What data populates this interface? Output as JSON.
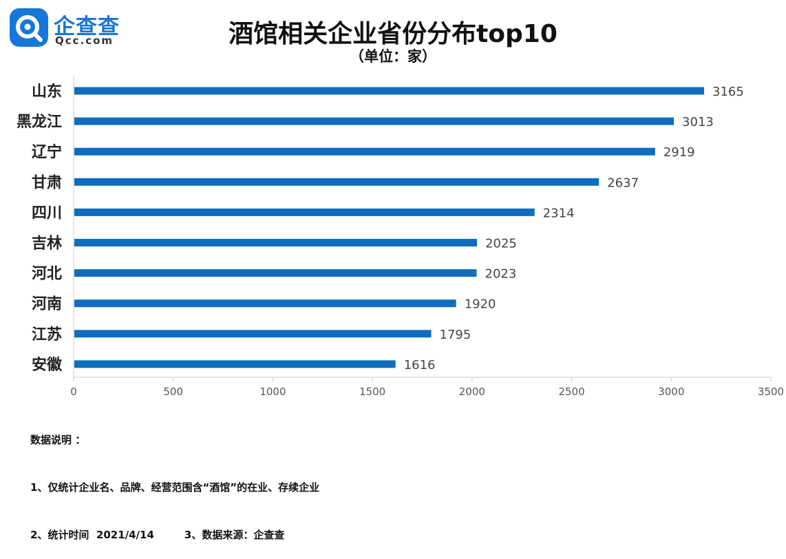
{
  "logo": {
    "name_cn": "企查查",
    "name_en": "Qcc.com",
    "icon": "qcc-logo-icon"
  },
  "chart_data": {
    "type": "bar",
    "orientation": "horizontal",
    "title": "酒馆相关企业省份分布top10",
    "subtitle": "（单位：家）",
    "categories": [
      "山东",
      "黑龙江",
      "辽宁",
      "甘肃",
      "四川",
      "吉林",
      "河北",
      "河南",
      "江苏",
      "安徽"
    ],
    "values": [
      3165,
      3013,
      2919,
      2637,
      2314,
      2025,
      2023,
      1920,
      1795,
      1616
    ],
    "xlim": [
      0,
      3500
    ],
    "xticks": [
      0,
      500,
      1000,
      1500,
      2000,
      2500,
      3000,
      3500
    ],
    "grid": false,
    "bar_color": "#0f6dbf",
    "data_labels": true
  },
  "notes": {
    "heading": "数据说明 ：",
    "line1": "1、仅统计企业名、品牌、经营范围含“酒馆”的在业、存续企业",
    "line2_time": "2、统计时间  2021/4/14",
    "line2_source": "3、数据来源：企查查"
  }
}
